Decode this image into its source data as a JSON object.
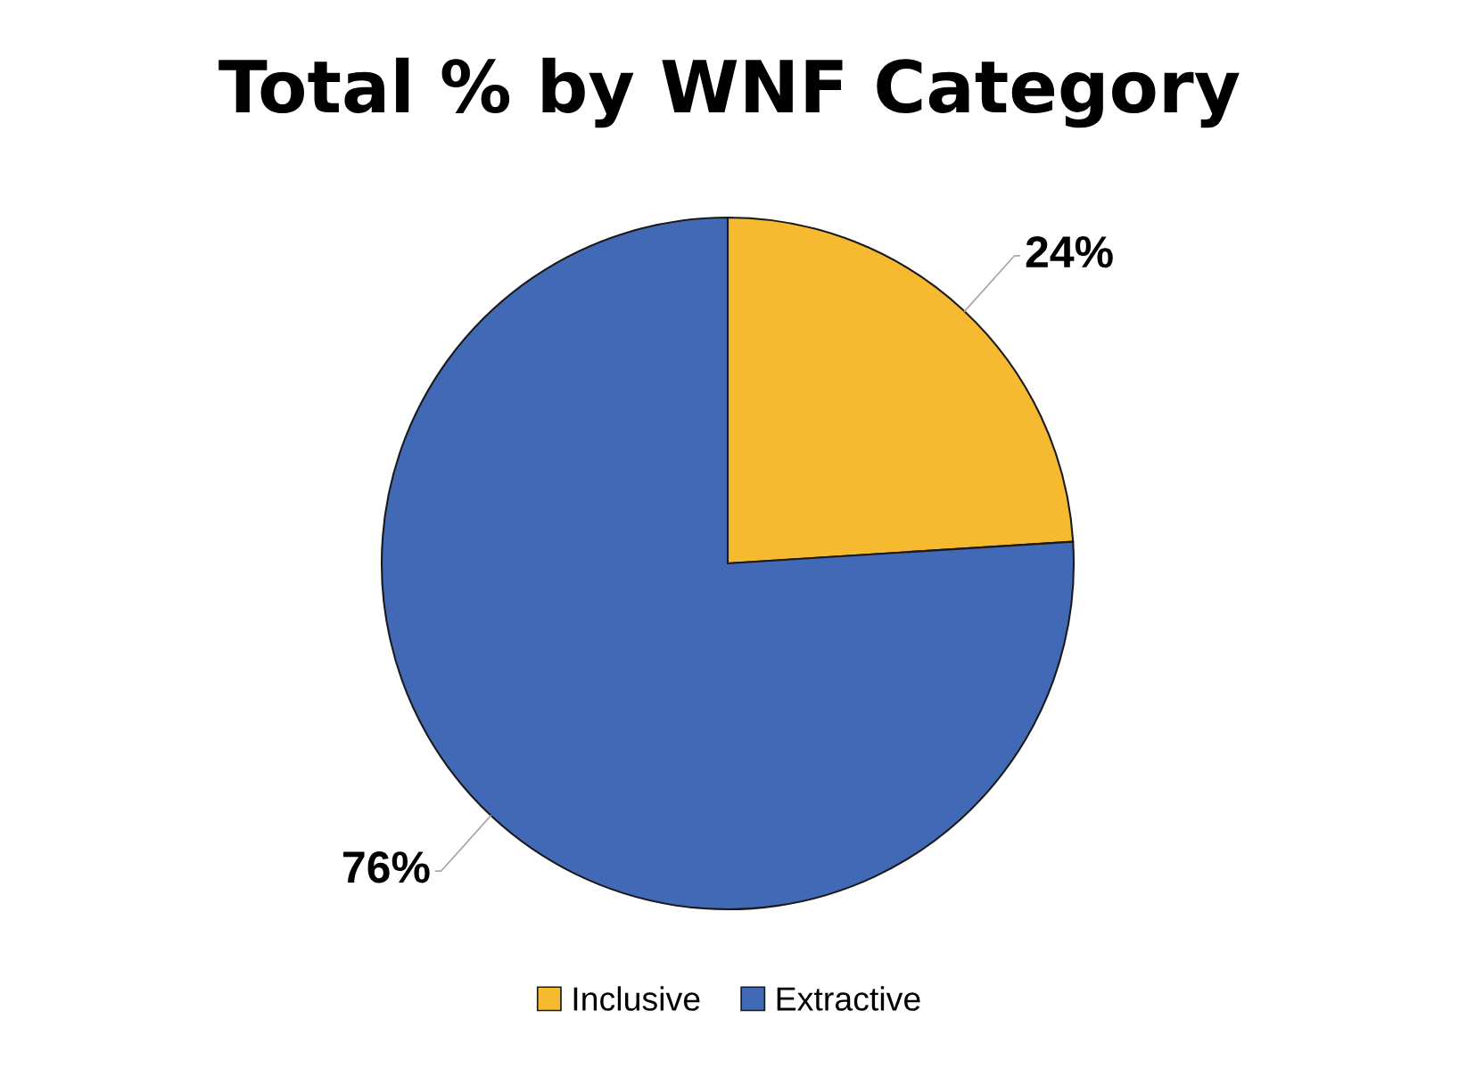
{
  "chart_data": {
    "type": "pie",
    "title": "Total % by WNF Category",
    "categories": [
      "Inclusive",
      "Extractive"
    ],
    "values": [
      24,
      76
    ],
    "colors": [
      "#f6ba31",
      "#4269b5"
    ],
    "value_labels": [
      "24%",
      "76%"
    ],
    "legend": "bottom"
  }
}
